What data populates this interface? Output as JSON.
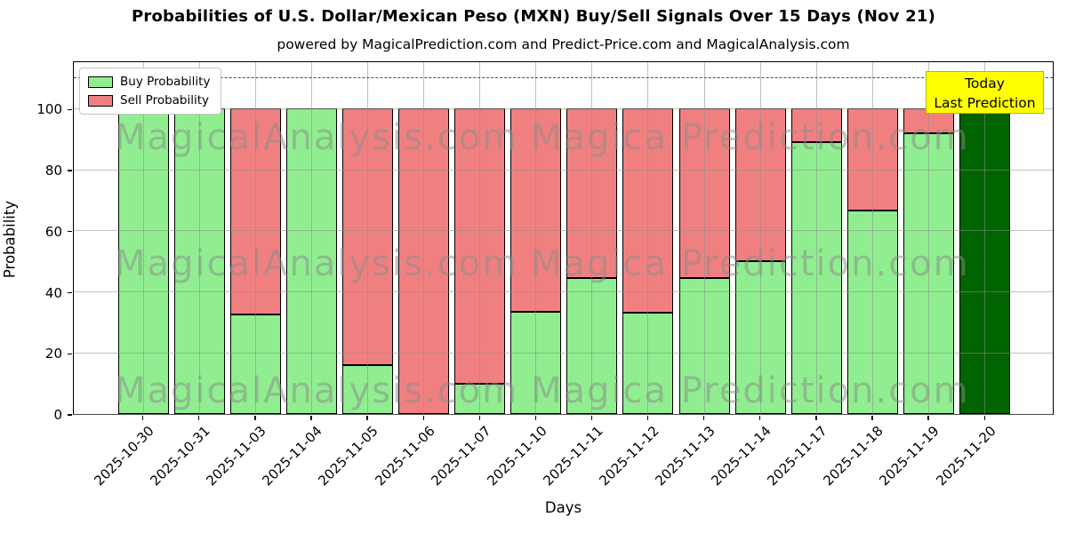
{
  "title": "Probabilities of U.S. Dollar/Mexican Peso (MXN) Buy/Sell Signals Over 15 Days (Nov 21)",
  "subtitle": "powered by MagicalPrediction.com and Predict-Price.com and MagicalAnalysis.com",
  "legend": {
    "items": [
      {
        "label": "Buy Probability",
        "color": "#90ee90"
      },
      {
        "label": "Sell Probability",
        "color": "#f08080"
      }
    ]
  },
  "annotation": {
    "line1": "Today",
    "line2": "Last Prediction",
    "bg_color": "#ffff00"
  },
  "watermarks": {
    "left_text": "MagicalAnalysis.com",
    "right_text": "Magica Prediction.com",
    "row_tops": [
      131,
      273,
      416
    ],
    "col_lefts": [
      128,
      596
    ]
  },
  "axes": {
    "xlabel": "Days",
    "ylabel": "Probability"
  },
  "colors": {
    "buy": "#90ee90",
    "sell": "#f08080",
    "today": "#006400",
    "bar_edge": "#000000",
    "grid": "#8c8c8c",
    "dashed_line": "#4a4a4a"
  },
  "chart_data": {
    "type": "bar",
    "stacked": true,
    "title": "Probabilities of U.S. Dollar/Mexican Peso (MXN) Buy/Sell Signals Over 15 Days (Nov 21)",
    "xlabel": "Days",
    "ylabel": "Probability",
    "categories": [
      "2025-10-30",
      "2025-10-31",
      "2025-11-03",
      "2025-11-04",
      "2025-11-05",
      "2025-11-06",
      "2025-11-07",
      "2025-11-10",
      "2025-11-11",
      "2025-11-12",
      "2025-11-13",
      "2025-11-14",
      "2025-11-17",
      "2025-11-18",
      "2025-11-19",
      "2025-11-20"
    ],
    "series": [
      {
        "name": "Buy Probability",
        "color": "#90ee90",
        "values": [
          100,
          100,
          32.5,
          100,
          16,
          0,
          10,
          33.5,
          44.5,
          33.3,
          44.5,
          50,
          89,
          66.5,
          92,
          100
        ]
      },
      {
        "name": "Sell Probability",
        "color": "#f08080",
        "values": [
          0,
          0,
          67.5,
          0,
          84,
          100,
          90,
          66.5,
          55.5,
          66.7,
          55.5,
          50,
          11,
          33.5,
          8,
          0
        ]
      }
    ],
    "today_index": 15,
    "today_color": "#006400",
    "yticks": [
      0,
      20,
      40,
      60,
      80,
      100
    ],
    "ylim": [
      0,
      115.8
    ],
    "dashed_line_y": 110,
    "grid": true,
    "legend_position": "upper left"
  }
}
